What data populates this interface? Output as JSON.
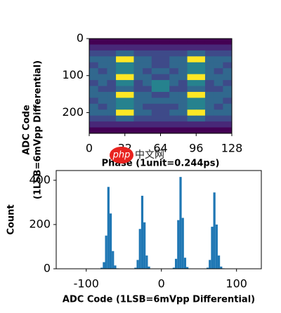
{
  "chart_data": [
    {
      "type": "heatmap",
      "colormap": "viridis",
      "xlabel": "Phase (1unit=0.244ps)",
      "ylabel": [
        "ADC Code",
        "(1LSB=6mVpp Differential)"
      ],
      "xlim": [
        0,
        128
      ],
      "ylim": [
        256,
        0
      ],
      "xticks": [
        0,
        32,
        64,
        96,
        128
      ],
      "yticks": [
        0,
        100,
        200
      ],
      "z": [
        [
          0,
          0,
          0,
          0,
          0,
          0,
          0,
          0,
          0,
          0,
          0,
          0,
          0,
          0,
          0,
          0
        ],
        [
          1,
          1,
          1,
          1,
          1,
          1,
          1,
          1,
          1,
          1,
          1,
          1,
          1,
          1,
          1,
          1
        ],
        [
          2,
          2,
          2,
          3,
          3,
          2,
          2,
          2,
          2,
          2,
          2,
          3,
          3,
          2,
          2,
          2
        ],
        [
          3,
          3,
          3,
          9,
          9,
          3,
          3,
          2,
          2,
          3,
          3,
          9,
          9,
          3,
          3,
          3
        ],
        [
          2,
          3,
          3,
          4,
          4,
          3,
          3,
          2,
          2,
          3,
          3,
          4,
          4,
          3,
          3,
          2
        ],
        [
          3,
          2,
          3,
          4,
          4,
          3,
          2,
          3,
          3,
          2,
          3,
          4,
          4,
          3,
          2,
          3
        ],
        [
          3,
          3,
          3,
          9,
          9,
          3,
          3,
          2,
          2,
          3,
          3,
          9,
          9,
          3,
          3,
          3
        ],
        [
          2,
          3,
          2,
          4,
          4,
          2,
          3,
          4,
          4,
          3,
          2,
          4,
          4,
          2,
          3,
          2
        ],
        [
          3,
          2,
          2,
          3,
          3,
          2,
          2,
          4,
          4,
          2,
          2,
          3,
          3,
          2,
          2,
          3
        ],
        [
          3,
          3,
          3,
          9,
          9,
          3,
          3,
          2,
          2,
          3,
          3,
          9,
          9,
          3,
          3,
          3
        ],
        [
          2,
          3,
          3,
          4,
          4,
          3,
          3,
          3,
          3,
          3,
          3,
          4,
          4,
          3,
          3,
          2
        ],
        [
          3,
          2,
          3,
          4,
          4,
          3,
          2,
          2,
          2,
          2,
          3,
          4,
          4,
          3,
          2,
          3
        ],
        [
          3,
          3,
          3,
          9,
          9,
          3,
          3,
          2,
          2,
          3,
          3,
          9,
          9,
          3,
          3,
          3
        ],
        [
          2,
          2,
          2,
          3,
          3,
          2,
          2,
          2,
          2,
          2,
          2,
          3,
          3,
          2,
          2,
          2
        ],
        [
          1,
          1,
          1,
          1,
          1,
          1,
          1,
          1,
          1,
          1,
          1,
          1,
          1,
          1,
          1,
          1
        ],
        [
          0,
          0,
          0,
          0,
          0,
          0,
          0,
          0,
          0,
          0,
          0,
          0,
          0,
          0,
          0,
          0
        ]
      ]
    },
    {
      "type": "histogram",
      "color": "#1f77b4",
      "xlabel": "ADC Code (1LSB=6mVpp Differential)",
      "ylabel": "Count",
      "xlim": [
        -140,
        133
      ],
      "ylim": [
        0,
        444
      ],
      "xticks": [
        -100,
        0,
        100
      ],
      "yticks": [
        0,
        200,
        400
      ],
      "bins": [
        -90,
        -87,
        -84,
        -81,
        -78,
        -75,
        -72,
        -69,
        -66,
        -63,
        -60,
        -57,
        -54,
        -51,
        -48,
        -45,
        -42,
        -39,
        -36,
        -33,
        -30,
        -27,
        -24,
        -21,
        -18,
        -15,
        -12,
        -9,
        -6,
        -3,
        0,
        3,
        6,
        9,
        12,
        15,
        18,
        21,
        24,
        27,
        30,
        33,
        36,
        39,
        42,
        45,
        48,
        51,
        54,
        57,
        60,
        63,
        66,
        69,
        72,
        75,
        78,
        81,
        84,
        87,
        90
      ],
      "counts": [
        0,
        0,
        1,
        5,
        30,
        150,
        370,
        250,
        80,
        15,
        2,
        0,
        0,
        0,
        0,
        0,
        0,
        1,
        5,
        40,
        180,
        330,
        210,
        60,
        10,
        1,
        0,
        0,
        0,
        0,
        0,
        0,
        0,
        0,
        1,
        5,
        45,
        220,
        415,
        230,
        50,
        8,
        1,
        0,
        0,
        0,
        0,
        0,
        0,
        1,
        5,
        40,
        190,
        345,
        200,
        60,
        10,
        2,
        0,
        0
      ]
    }
  ],
  "watermark": {
    "logo": "php",
    "text": "中文网"
  }
}
